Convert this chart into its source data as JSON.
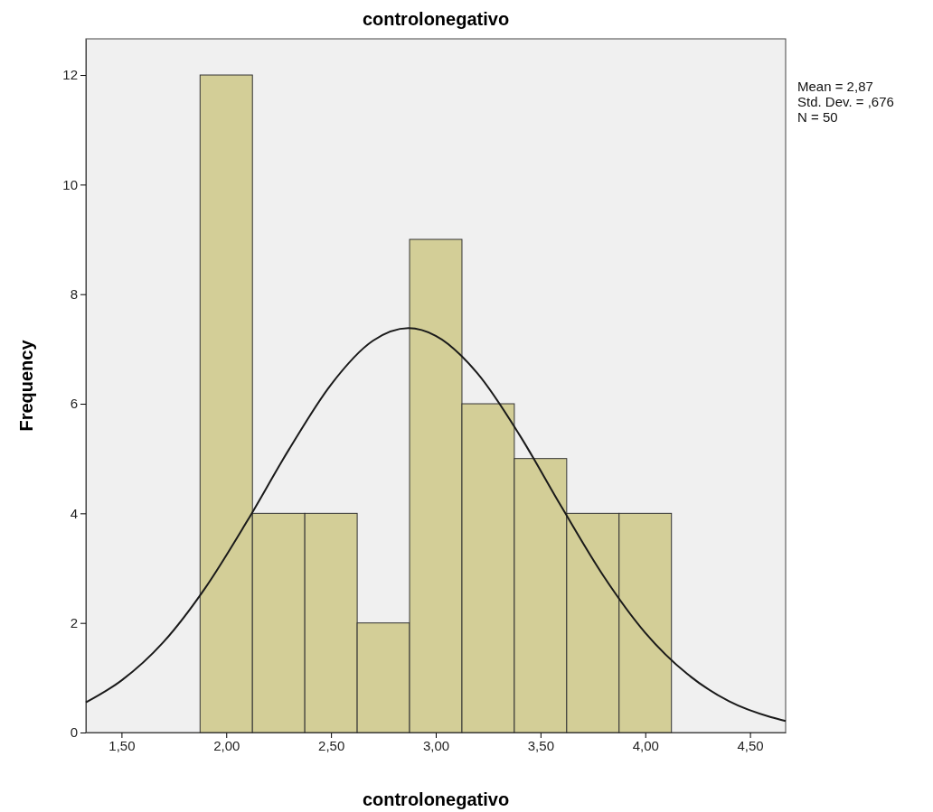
{
  "chart_data": {
    "type": "histogram",
    "title": "controlonegativo",
    "xlabel": "controlonegativo",
    "ylabel": "Frequency",
    "xlim": [
      1.33,
      4.67
    ],
    "ylim": [
      0,
      12.66
    ],
    "xticks": [
      {
        "value": 1.5,
        "label": "1,50"
      },
      {
        "value": 2,
        "label": "2,00"
      },
      {
        "value": 2.5,
        "label": "2,50"
      },
      {
        "value": 3,
        "label": "3,00"
      },
      {
        "value": 3.5,
        "label": "3,50"
      },
      {
        "value": 4,
        "label": "4,00"
      },
      {
        "value": 4.5,
        "label": "4,50"
      }
    ],
    "yticks": [
      0,
      2,
      4,
      6,
      8,
      10,
      12
    ],
    "series": [
      {
        "type": "histogram",
        "color": "#d3ce97",
        "bins": [
          1.875,
          2.125,
          2.375,
          2.625,
          2.875,
          3.125,
          3.375,
          3.625,
          3.875,
          4.125
        ],
        "values": [
          12,
          4,
          4,
          2,
          9,
          6,
          5,
          4,
          4
        ]
      },
      {
        "type": "line",
        "color": "#1a1a1a",
        "x": [
          1.33,
          1.5,
          1.7,
          1.9,
          2.1,
          2.3,
          2.5,
          2.7,
          2.87,
          3.0,
          3.2,
          3.4,
          3.6,
          3.8,
          4.0,
          4.2,
          4.4,
          4.6,
          4.67
        ],
        "values": [
          0.55,
          0.95,
          1.65,
          2.64,
          3.86,
          5.17,
          6.35,
          7.15,
          7.38,
          7.24,
          6.55,
          5.43,
          4.12,
          2.86,
          1.82,
          1.07,
          0.57,
          0.28,
          0.21
        ]
      }
    ],
    "annotations": [
      "Mean = 2,87",
      "Std. Dev. = ,676",
      "N = 50"
    ]
  }
}
